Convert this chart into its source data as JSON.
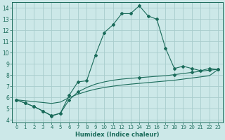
{
  "xlabel": "Humidex (Indice chaleur)",
  "bg_color": "#cce8e8",
  "grid_color": "#a8cccc",
  "line_color": "#1a6b5a",
  "xlim": [
    -0.5,
    23.5
  ],
  "ylim": [
    3.8,
    14.5
  ],
  "xticks": [
    0,
    1,
    2,
    3,
    4,
    5,
    6,
    7,
    8,
    9,
    10,
    11,
    12,
    13,
    14,
    15,
    16,
    17,
    18,
    19,
    20,
    21,
    22,
    23
  ],
  "yticks": [
    4,
    5,
    6,
    7,
    8,
    9,
    10,
    11,
    12,
    13,
    14
  ],
  "line1_x": [
    0,
    1,
    2,
    3,
    4,
    5,
    6,
    7,
    8,
    9,
    10,
    11,
    12,
    13,
    14,
    15,
    16,
    17,
    18,
    19,
    20,
    21,
    22,
    23
  ],
  "line1_y": [
    5.8,
    5.5,
    5.2,
    4.8,
    4.4,
    4.6,
    6.2,
    7.4,
    7.5,
    9.8,
    11.8,
    12.5,
    13.5,
    13.5,
    14.2,
    13.3,
    13.0,
    10.4,
    8.6,
    8.8,
    8.6,
    8.4,
    8.6,
    8.5
  ],
  "line2_x": [
    0,
    1,
    2,
    3,
    4,
    5,
    6,
    7,
    8,
    9,
    10,
    11,
    12,
    13,
    14,
    15,
    16,
    17,
    18,
    19,
    20,
    21,
    22,
    23
  ],
  "line2_y": [
    5.8,
    5.5,
    5.2,
    4.8,
    4.35,
    4.6,
    5.8,
    6.5,
    6.9,
    7.2,
    7.4,
    7.55,
    7.65,
    7.72,
    7.78,
    7.84,
    7.9,
    7.95,
    8.05,
    8.15,
    8.25,
    8.35,
    8.45,
    8.52
  ],
  "line3_x": [
    0,
    1,
    2,
    3,
    4,
    5,
    6,
    7,
    8,
    9,
    10,
    11,
    12,
    13,
    14,
    15,
    16,
    17,
    18,
    19,
    20,
    21,
    22,
    23
  ],
  "line3_y": [
    5.8,
    5.72,
    5.64,
    5.56,
    5.48,
    5.6,
    6.0,
    6.3,
    6.55,
    6.75,
    6.9,
    7.02,
    7.12,
    7.2,
    7.27,
    7.34,
    7.41,
    7.48,
    7.55,
    7.65,
    7.75,
    7.85,
    7.95,
    8.52
  ]
}
